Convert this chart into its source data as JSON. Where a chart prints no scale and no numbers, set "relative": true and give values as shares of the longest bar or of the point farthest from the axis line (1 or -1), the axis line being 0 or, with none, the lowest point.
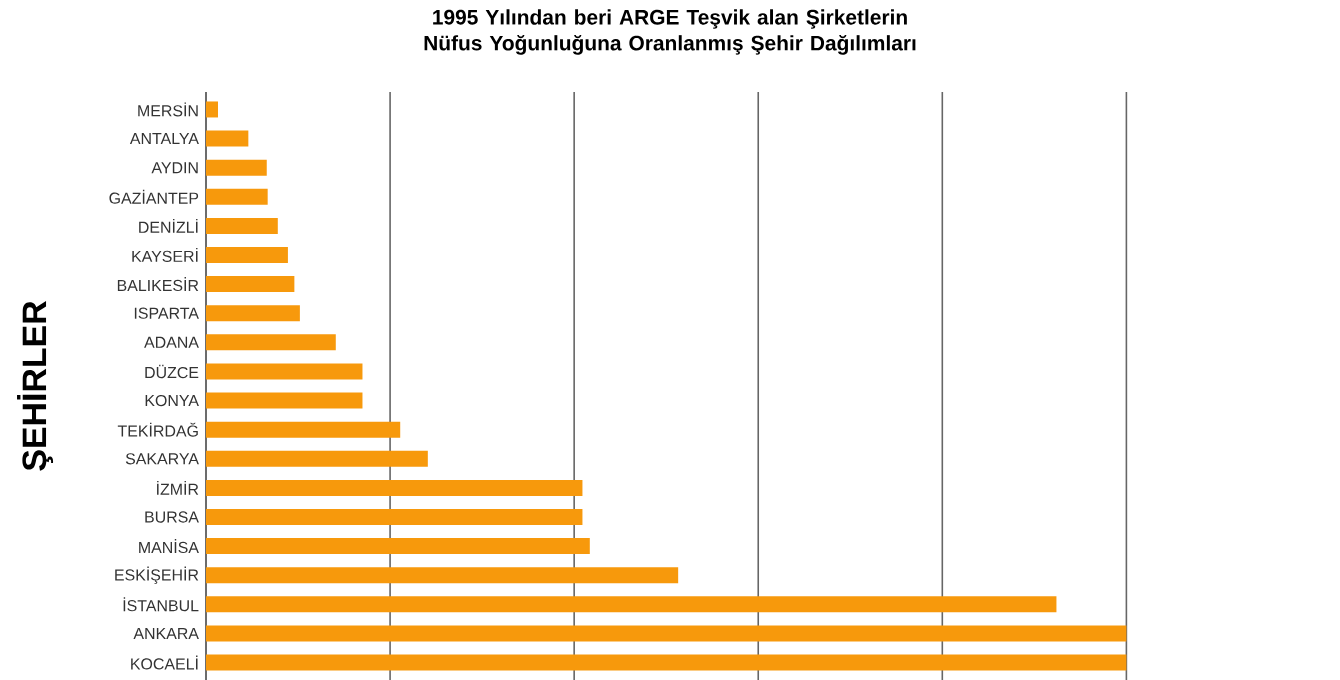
{
  "chart_data": {
    "type": "bar",
    "orientation": "horizontal",
    "relative": true,
    "title": "1995 Yılından beri ARGE Teşvik alan Şirketlerin\nNüfus Yoğunluğuna Oranlanmış Şehir Dağılımları",
    "ylabel": "ŞEHİRLER",
    "categories": [
      "MERSİN",
      "ANTALYA",
      "AYDIN",
      "GAZİANTEP",
      "DENİZLİ",
      "KAYSERİ",
      "BALIKESİR",
      "ISPARTA",
      "ADANA",
      "DÜZCE",
      "KONYA",
      "TEKİRDAĞ",
      "SAKARYA",
      "İZMİR",
      "BURSA",
      "MANİSA",
      "ESKİŞEHİR",
      "İSTANBUL",
      "ANKARA",
      "KOCAELİ"
    ],
    "values": [
      0.013,
      0.046,
      0.066,
      0.067,
      0.078,
      0.089,
      0.096,
      0.102,
      0.141,
      0.17,
      0.17,
      0.211,
      0.241,
      0.409,
      0.409,
      0.417,
      0.513,
      0.924,
      1,
      1
    ],
    "color": "#f7990c",
    "grid": "x"
  }
}
